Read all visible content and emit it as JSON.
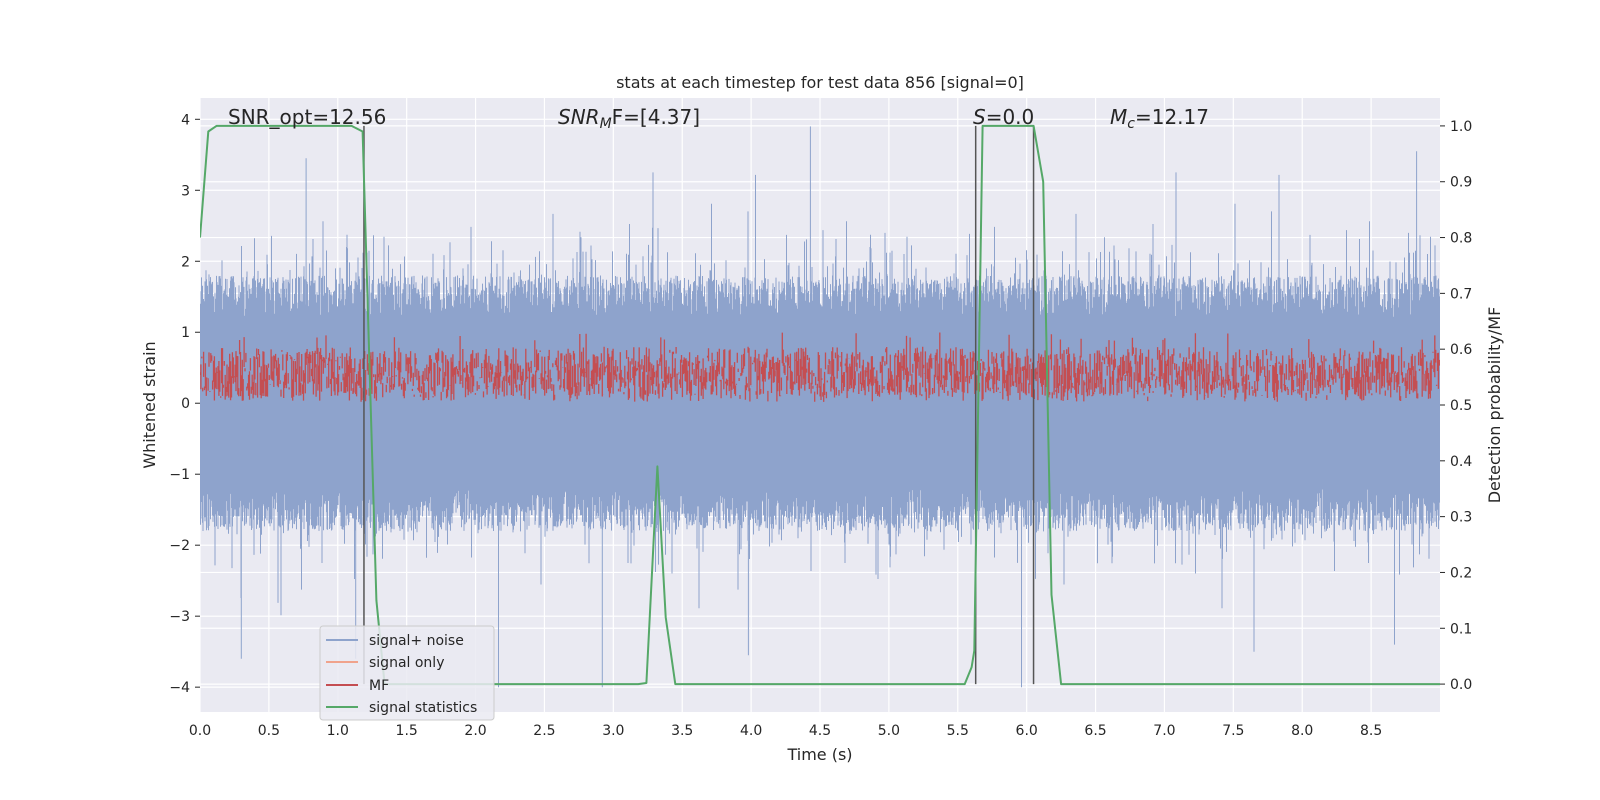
{
  "chart_data": {
    "type": "line",
    "title": "stats at each timestep for test data 856 [signal=0]",
    "xlabel": "Time (s)",
    "ylabel": "Whitened strain",
    "y2label": "Detection probability/MF",
    "xlim": [
      0,
      9.0
    ],
    "ylim": [
      -4.35,
      4.3
    ],
    "y2lim": [
      -0.05,
      1.05
    ],
    "xticks": [
      0.0,
      0.5,
      1.0,
      1.5,
      2.0,
      2.5,
      3.0,
      3.5,
      4.0,
      4.5,
      5.0,
      5.5,
      6.0,
      6.5,
      7.0,
      7.5,
      8.0,
      8.5
    ],
    "xtick_labels": [
      "0.0",
      "0.5",
      "1.0",
      "1.5",
      "2.0",
      "2.5",
      "3.0",
      "3.5",
      "4.0",
      "4.5",
      "5.0",
      "5.5",
      "6.0",
      "6.5",
      "7.0",
      "7.5",
      "8.0",
      "8.5"
    ],
    "yticks": [
      4,
      3,
      2,
      1,
      0,
      -1,
      -2,
      -3,
      -4
    ],
    "ytick_labels": [
      "4",
      "3",
      "2",
      "1",
      "0",
      "−1",
      "−2",
      "−3",
      "−4"
    ],
    "y2ticks": [
      1.0,
      0.9,
      0.8,
      0.7,
      0.6,
      0.5,
      0.4,
      0.3,
      0.2,
      0.1,
      0.0
    ],
    "y2tick_labels": [
      "1.0",
      "0.9",
      "0.8",
      "0.7",
      "0.6",
      "0.5",
      "0.4",
      "0.3",
      "0.2",
      "0.1",
      "0.0"
    ],
    "grid": true,
    "annotations": {
      "snr_opt": "SNR_opt=12.56",
      "snr_mf_italic": "SNR",
      "snr_mf_sub": "M",
      "snr_mf_rest": "F=[4.37]",
      "s_italic": "S",
      "s_rest": "=0.0",
      "mc_italic": "M",
      "mc_sub": "c",
      "mc_rest": "=12.17"
    },
    "series": [
      {
        "name": "signal+ noise",
        "color": "#8ea3cc",
        "axis": "left",
        "sample_rate_hz": 2048,
        "noise_envelope": {
          "mean": 0.0,
          "std": 1.0,
          "max": 3.9,
          "min": -4.0
        },
        "notable_peaks": [
          {
            "x": 0.3,
            "y": -3.6
          },
          {
            "x": 0.77,
            "y": 3.45
          },
          {
            "x": 1.13,
            "y": -3.6
          },
          {
            "x": 2.92,
            "y": -4.0
          },
          {
            "x": 3.98,
            "y": -3.55
          },
          {
            "x": 4.43,
            "y": 3.9
          },
          {
            "x": 7.65,
            "y": -3.5
          },
          {
            "x": 8.83,
            "y": 3.55
          },
          {
            "x": 8.67,
            "y": -3.4
          }
        ]
      },
      {
        "name": "signal only",
        "color": "#f0a38c",
        "axis": "left",
        "values": []
      },
      {
        "name": "MF",
        "color": "#c44e52",
        "axis": "right",
        "sample_rate_hz": 200,
        "band": {
          "mean": 0.555,
          "low": 0.505,
          "high": 0.595,
          "max": 0.63
        }
      },
      {
        "name": "signal statistics",
        "color": "#55a868",
        "axis": "right",
        "x": [
          0.0,
          0.06,
          0.12,
          0.5,
          1.0,
          1.1,
          1.18,
          1.28,
          1.34,
          3.05,
          3.18,
          3.24,
          3.32,
          3.38,
          3.45,
          5.55,
          5.6,
          5.62,
          5.68,
          6.05,
          6.12,
          6.18,
          6.25,
          6.3,
          9.0
        ],
        "y": [
          0.8,
          0.99,
          1.0,
          1.0,
          1.0,
          1.0,
          0.99,
          0.15,
          0.0,
          0.0,
          0.0,
          0.002,
          0.39,
          0.12,
          0.0,
          0.0,
          0.03,
          0.06,
          1.0,
          1.0,
          0.9,
          0.16,
          0.0,
          0.0,
          0.0
        ]
      }
    ],
    "vlines": [
      1.19,
      5.63,
      6.05
    ],
    "vline_color": "#555555",
    "legend": {
      "placement": "lower-left",
      "entries": [
        "signal+ noise",
        "signal only",
        "MF",
        "signal statistics"
      ]
    },
    "colors": {
      "background": "#eaeaf2",
      "grid": "#ffffff"
    }
  }
}
